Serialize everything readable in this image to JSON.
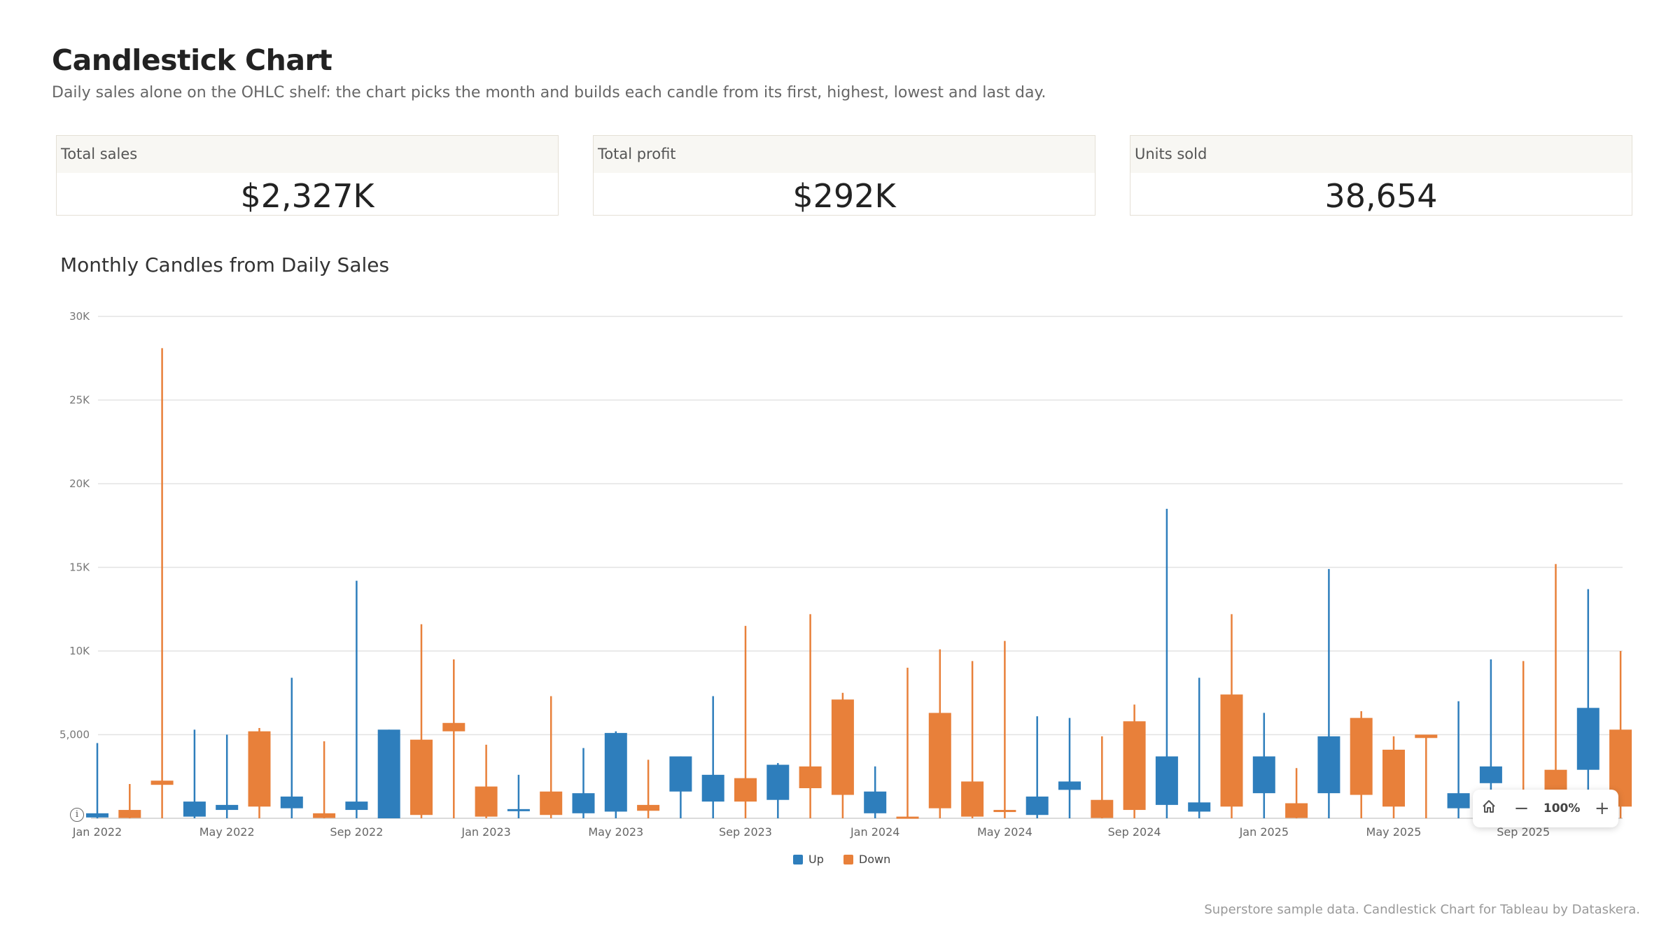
{
  "header": {
    "title": "Candlestick Chart",
    "subtitle": "Daily sales alone on the OHLC shelf: the chart picks the month and builds each candle from its first, highest, lowest and last day."
  },
  "kpis": [
    {
      "label": "Total sales",
      "value": "$2,327K"
    },
    {
      "label": "Total profit",
      "value": "$292K"
    },
    {
      "label": "Units sold",
      "value": "38,654"
    }
  ],
  "chart_title": "Monthly Candles from Daily Sales",
  "chart_data": {
    "type": "candlestick",
    "y_ticks": [
      "5,000",
      "10K",
      "15K",
      "20K",
      "25K",
      "30K"
    ],
    "y_tick_values": [
      5000,
      10000,
      15000,
      20000,
      25000,
      30000
    ],
    "ylim": [
      0,
      30000
    ],
    "x_tick_labels": [
      "Jan 2022",
      "May 2022",
      "Sep 2022",
      "Jan 2023",
      "May 2023",
      "Sep 2023",
      "Jan 2024",
      "May 2024",
      "Sep 2024",
      "Jan 2025",
      "May 2025",
      "Sep 2025"
    ],
    "grid": true,
    "legend_position": "bottom",
    "colors": {
      "up": "#2e7ebc",
      "down": "#e8803a"
    },
    "candles": [
      {
        "month": "2022-01",
        "open": 50,
        "high": 4500,
        "low": 0,
        "close": 300
      },
      {
        "month": "2022-02",
        "open": 500,
        "high": 2050,
        "low": 0,
        "close": 20
      },
      {
        "month": "2022-03",
        "open": 2250,
        "high": 28100,
        "low": 0,
        "close": 2000
      },
      {
        "month": "2022-04",
        "open": 100,
        "high": 5300,
        "low": 0,
        "close": 1000
      },
      {
        "month": "2022-05",
        "open": 500,
        "high": 5000,
        "low": 0,
        "close": 800
      },
      {
        "month": "2022-06",
        "open": 5200,
        "high": 5400,
        "low": 0,
        "close": 700
      },
      {
        "month": "2022-07",
        "open": 600,
        "high": 8400,
        "low": 0,
        "close": 1300
      },
      {
        "month": "2022-08",
        "open": 300,
        "high": 4600,
        "low": 0,
        "close": 20
      },
      {
        "month": "2022-09",
        "open": 500,
        "high": 14200,
        "low": 0,
        "close": 1000
      },
      {
        "month": "2022-10",
        "open": 0,
        "high": 5300,
        "low": 0,
        "close": 5300
      },
      {
        "month": "2022-11",
        "open": 4700,
        "high": 11600,
        "low": 0,
        "close": 200
      },
      {
        "month": "2022-12",
        "open": 5700,
        "high": 9500,
        "low": 0,
        "close": 5200
      },
      {
        "month": "2023-01",
        "open": 1900,
        "high": 4400,
        "low": 0,
        "close": 100
      },
      {
        "month": "2023-02",
        "open": 450,
        "high": 2600,
        "low": 0,
        "close": 550
      },
      {
        "month": "2023-03",
        "open": 1600,
        "high": 7300,
        "low": 0,
        "close": 200
      },
      {
        "month": "2023-04",
        "open": 300,
        "high": 4200,
        "low": 0,
        "close": 1500
      },
      {
        "month": "2023-05",
        "open": 400,
        "high": 5200,
        "low": 0,
        "close": 5100
      },
      {
        "month": "2023-06",
        "open": 800,
        "high": 3500,
        "low": 0,
        "close": 450
      },
      {
        "month": "2023-07",
        "open": 1600,
        "high": 3700,
        "low": 0,
        "close": 3700
      },
      {
        "month": "2023-08",
        "open": 1000,
        "high": 7300,
        "low": 0,
        "close": 2600
      },
      {
        "month": "2023-09",
        "open": 2400,
        "high": 11500,
        "low": 0,
        "close": 1000
      },
      {
        "month": "2023-10",
        "open": 1100,
        "high": 3300,
        "low": 0,
        "close": 3200
      },
      {
        "month": "2023-11",
        "open": 3100,
        "high": 12200,
        "low": 0,
        "close": 1800
      },
      {
        "month": "2023-12",
        "open": 7100,
        "high": 7500,
        "low": 0,
        "close": 1400
      },
      {
        "month": "2024-01",
        "open": 300,
        "high": 3100,
        "low": 0,
        "close": 1600
      },
      {
        "month": "2024-02",
        "open": 100,
        "high": 9000,
        "low": 0,
        "close": 50
      },
      {
        "month": "2024-03",
        "open": 6300,
        "high": 10100,
        "low": 0,
        "close": 600
      },
      {
        "month": "2024-04",
        "open": 2200,
        "high": 9400,
        "low": 0,
        "close": 100
      },
      {
        "month": "2024-05",
        "open": 500,
        "high": 10600,
        "low": 0,
        "close": 400
      },
      {
        "month": "2024-06",
        "open": 200,
        "high": 6100,
        "low": 0,
        "close": 1300
      },
      {
        "month": "2024-07",
        "open": 1700,
        "high": 6000,
        "low": 0,
        "close": 2200
      },
      {
        "month": "2024-08",
        "open": 1100,
        "high": 4900,
        "low": 0,
        "close": 20
      },
      {
        "month": "2024-09",
        "open": 5800,
        "high": 6800,
        "low": 0,
        "close": 500
      },
      {
        "month": "2024-10",
        "open": 800,
        "high": 18500,
        "low": 0,
        "close": 3700
      },
      {
        "month": "2024-11",
        "open": 400,
        "high": 8400,
        "low": 0,
        "close": 950
      },
      {
        "month": "2024-12",
        "open": 7400,
        "high": 12200,
        "low": 0,
        "close": 700
      },
      {
        "month": "2025-01",
        "open": 1500,
        "high": 6300,
        "low": 0,
        "close": 3700
      },
      {
        "month": "2025-02",
        "open": 900,
        "high": 3000,
        "low": 0,
        "close": 20
      },
      {
        "month": "2025-03",
        "open": 1500,
        "high": 14900,
        "low": 0,
        "close": 4900
      },
      {
        "month": "2025-04",
        "open": 6000,
        "high": 6400,
        "low": 0,
        "close": 1400
      },
      {
        "month": "2025-05",
        "open": 4100,
        "high": 4900,
        "low": 0,
        "close": 700
      },
      {
        "month": "2025-06",
        "open": 5000,
        "high": 5000,
        "low": 0,
        "close": 4800
      },
      {
        "month": "2025-07",
        "open": 600,
        "high": 7000,
        "low": 0,
        "close": 1500
      },
      {
        "month": "2025-08",
        "open": 2100,
        "high": 9500,
        "low": 0,
        "close": 3100
      },
      {
        "month": "2025-09",
        "open": 20,
        "high": 9400,
        "low": 0,
        "close": 0
      },
      {
        "month": "2025-10",
        "open": 2900,
        "high": 15200,
        "low": 0,
        "close": 1100
      },
      {
        "month": "2025-11",
        "open": 2900,
        "high": 13700,
        "low": 0,
        "close": 6600
      },
      {
        "month": "2025-12",
        "open": 5300,
        "high": 10000,
        "low": 0,
        "close": 700
      }
    ]
  },
  "legend": {
    "up_label": "Up",
    "down_label": "Down"
  },
  "zoom": {
    "level": "100%",
    "minus": "−",
    "plus": "+"
  },
  "icons": {
    "info": "info-icon",
    "home": "home-icon",
    "zoom_out": "zoom-out-icon",
    "zoom_in": "zoom-in-icon"
  },
  "footer": "Superstore sample data. Candlestick Chart for Tableau by Dataskera."
}
